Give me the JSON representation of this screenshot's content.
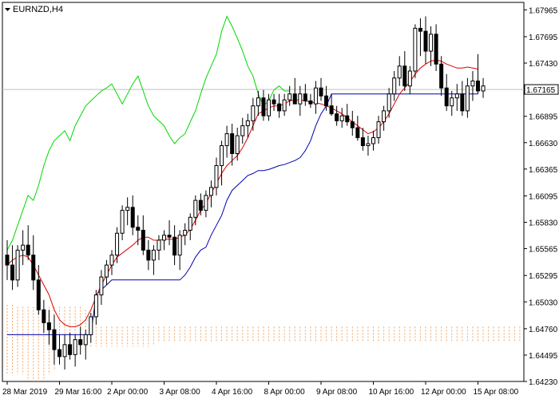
{
  "chart_data": {
    "type": "candlestick",
    "symbol_title": "EURNZD,H4",
    "y_ticks": [
      "1.67965",
      "1.67695",
      "1.67430",
      "1.67165",
      "1.66895",
      "1.66630",
      "1.66365",
      "1.66095",
      "1.65830",
      "1.65565",
      "1.65295",
      "1.65030",
      "1.64760",
      "1.64495",
      "1.64230"
    ],
    "ylim": [
      1.6423,
      1.6804
    ],
    "current_price": "1.67165",
    "x_labels": [
      "28 Mar 2019",
      "29 Mar 16:00",
      "2 Apr 00:00",
      "3 Apr 08:00",
      "4 Apr 16:00",
      "8 Apr 00:00",
      "9 Apr 08:00",
      "10 Apr 16:00",
      "12 Apr 00:00",
      "15 Apr 08:00"
    ],
    "x_label_index": [
      0,
      10,
      20,
      30,
      40,
      50,
      60,
      70,
      80,
      90
    ],
    "candles": [
      [
        1.655,
        1.6565,
        1.6525,
        1.654
      ],
      [
        1.654,
        1.656,
        1.6515,
        1.6525
      ],
      [
        1.6525,
        1.656,
        1.6518,
        1.6555
      ],
      [
        1.6555,
        1.6575,
        1.654,
        1.656
      ],
      [
        1.656,
        1.658,
        1.6545,
        1.655
      ],
      [
        1.655,
        1.657,
        1.6515,
        1.6525
      ],
      [
        1.6525,
        1.654,
        1.649,
        1.6495
      ],
      [
        1.6495,
        1.6505,
        1.6472,
        1.6482
      ],
      [
        1.6482,
        1.6495,
        1.646,
        1.6475
      ],
      [
        1.6475,
        1.649,
        1.644,
        1.6455
      ],
      [
        1.6455,
        1.647,
        1.644,
        1.6448
      ],
      [
        1.6448,
        1.647,
        1.6435,
        1.646
      ],
      [
        1.646,
        1.6472,
        1.6445,
        1.645
      ],
      [
        1.645,
        1.647,
        1.6438,
        1.6465
      ],
      [
        1.6465,
        1.6478,
        1.645,
        1.646
      ],
      [
        1.646,
        1.6475,
        1.6445,
        1.647
      ],
      [
        1.647,
        1.6492,
        1.6462,
        1.6488
      ],
      [
        1.6488,
        1.6515,
        1.648,
        1.651
      ],
      [
        1.651,
        1.6535,
        1.65,
        1.6528
      ],
      [
        1.6528,
        1.6545,
        1.652,
        1.654
      ],
      [
        1.654,
        1.6555,
        1.653,
        1.655
      ],
      [
        1.655,
        1.6578,
        1.6542,
        1.6572
      ],
      [
        1.6572,
        1.66,
        1.6565,
        1.6595
      ],
      [
        1.6595,
        1.6608,
        1.658,
        1.6598
      ],
      [
        1.6598,
        1.661,
        1.657,
        1.6578
      ],
      [
        1.6578,
        1.659,
        1.656,
        1.6575
      ],
      [
        1.6575,
        1.659,
        1.655,
        1.6555
      ],
      [
        1.6555,
        1.6565,
        1.6535,
        1.6545
      ],
      [
        1.6545,
        1.656,
        1.653,
        1.6555
      ],
      [
        1.6555,
        1.657,
        1.6545,
        1.6565
      ],
      [
        1.6565,
        1.6575,
        1.6555,
        1.657
      ],
      [
        1.657,
        1.6585,
        1.656,
        1.6568
      ],
      [
        1.6568,
        1.658,
        1.654,
        1.655
      ],
      [
        1.655,
        1.6575,
        1.6535,
        1.657
      ],
      [
        1.657,
        1.6582,
        1.656,
        1.6575
      ],
      [
        1.6575,
        1.6592,
        1.6565,
        1.6588
      ],
      [
        1.6588,
        1.661,
        1.658,
        1.6605
      ],
      [
        1.6605,
        1.6612,
        1.659,
        1.6595
      ],
      [
        1.6595,
        1.6615,
        1.6588,
        1.661
      ],
      [
        1.661,
        1.6625,
        1.6598,
        1.6618
      ],
      [
        1.6618,
        1.6648,
        1.661,
        1.664
      ],
      [
        1.664,
        1.6665,
        1.662,
        1.666
      ],
      [
        1.666,
        1.668,
        1.6648,
        1.6672
      ],
      [
        1.6672,
        1.6682,
        1.664,
        1.6652
      ],
      [
        1.6652,
        1.6678,
        1.6645,
        1.667
      ],
      [
        1.667,
        1.6688,
        1.6662,
        1.668
      ],
      [
        1.668,
        1.6692,
        1.6668,
        1.6685
      ],
      [
        1.6685,
        1.6708,
        1.6675,
        1.67
      ],
      [
        1.67,
        1.6715,
        1.669,
        1.6708
      ],
      [
        1.6708,
        1.6716,
        1.6685,
        1.669
      ],
      [
        1.669,
        1.6712,
        1.6685,
        1.6706
      ],
      [
        1.6706,
        1.6712,
        1.6695,
        1.6702
      ],
      [
        1.6702,
        1.6712,
        1.6688,
        1.6695
      ],
      [
        1.6695,
        1.6712,
        1.669,
        1.6706
      ],
      [
        1.6706,
        1.672,
        1.67,
        1.6712
      ],
      [
        1.6712,
        1.6728,
        1.6702,
        1.6702
      ],
      [
        1.6702,
        1.672,
        1.669,
        1.6712
      ],
      [
        1.6712,
        1.6722,
        1.67,
        1.6705
      ],
      [
        1.6705,
        1.6712,
        1.6698,
        1.6702
      ],
      [
        1.6702,
        1.6725,
        1.6692,
        1.6718
      ],
      [
        1.6718,
        1.6728,
        1.6705,
        1.671
      ],
      [
        1.671,
        1.672,
        1.6695,
        1.67
      ],
      [
        1.67,
        1.6712,
        1.669,
        1.6692
      ],
      [
        1.6692,
        1.67,
        1.668,
        1.6685
      ],
      [
        1.6685,
        1.6698,
        1.6678,
        1.669
      ],
      [
        1.669,
        1.6702,
        1.668,
        1.6684
      ],
      [
        1.6684,
        1.6695,
        1.667,
        1.6678
      ],
      [
        1.6678,
        1.669,
        1.6665,
        1.6668
      ],
      [
        1.6668,
        1.6678,
        1.6655,
        1.666
      ],
      [
        1.666,
        1.667,
        1.665,
        1.6662
      ],
      [
        1.6662,
        1.6675,
        1.6655,
        1.6668
      ],
      [
        1.6668,
        1.669,
        1.6662,
        1.6684
      ],
      [
        1.6684,
        1.67,
        1.6675,
        1.6695
      ],
      [
        1.6695,
        1.6718,
        1.6688,
        1.6712
      ],
      [
        1.6712,
        1.6735,
        1.6705,
        1.6728
      ],
      [
        1.6728,
        1.675,
        1.672,
        1.674
      ],
      [
        1.674,
        1.6755,
        1.6715,
        1.672
      ],
      [
        1.672,
        1.674,
        1.6712,
        1.6735
      ],
      [
        1.6735,
        1.6782,
        1.6728,
        1.6778
      ],
      [
        1.6778,
        1.6788,
        1.675,
        1.6775
      ],
      [
        1.6775,
        1.679,
        1.6742,
        1.6755
      ],
      [
        1.6755,
        1.678,
        1.674,
        1.6772
      ],
      [
        1.6772,
        1.6782,
        1.6735,
        1.6742
      ],
      [
        1.6742,
        1.675,
        1.671,
        1.6718
      ],
      [
        1.6718,
        1.6732,
        1.6695,
        1.67
      ],
      [
        1.67,
        1.6715,
        1.669,
        1.6708
      ],
      [
        1.6708,
        1.6722,
        1.6695,
        1.6712
      ],
      [
        1.6712,
        1.6725,
        1.669,
        1.6695
      ],
      [
        1.6695,
        1.6728,
        1.6688,
        1.672
      ],
      [
        1.672,
        1.6735,
        1.6705,
        1.6725
      ],
      [
        1.6725,
        1.6752,
        1.6712,
        1.6715
      ],
      [
        1.6715,
        1.6728,
        1.6708,
        1.672
      ]
    ],
    "tenkan_sen": [
      1.654,
      1.6545,
      1.6548,
      1.655,
      1.6548,
      1.654,
      1.653,
      1.652,
      1.651,
      1.6495,
      1.6485,
      1.648,
      1.6478,
      1.6478,
      1.648,
      1.6485,
      1.6495,
      1.6508,
      1.652,
      1.653,
      1.654,
      1.6548,
      1.6552,
      1.6556,
      1.656,
      1.6565,
      1.6568,
      1.6568,
      1.6565,
      1.6565,
      1.6566,
      1.6566,
      1.6566,
      1.6568,
      1.657,
      1.6576,
      1.6585,
      1.6595,
      1.6602,
      1.6612,
      1.6622,
      1.6632,
      1.664,
      1.6645,
      1.665,
      1.6658,
      1.6668,
      1.668,
      1.6692,
      1.6695,
      1.6698,
      1.67,
      1.67,
      1.6702,
      1.6705,
      1.6706,
      1.6706,
      1.6705,
      1.6704,
      1.6703,
      1.6702,
      1.67,
      1.6698,
      1.6695,
      1.6692,
      1.6688,
      1.6684,
      1.668,
      1.6676,
      1.6672,
      1.6674,
      1.6678,
      1.6684,
      1.6692,
      1.6702,
      1.6712,
      1.6718,
      1.6724,
      1.6732,
      1.6738,
      1.6742,
      1.6745,
      1.6746,
      1.6745,
      1.6742,
      1.674,
      1.6738,
      1.6738,
      1.6739,
      1.6738,
      1.6737
    ],
    "kijun_sen": [
      1.647,
      1.647,
      1.647,
      1.647,
      1.647,
      1.647,
      1.647,
      1.647,
      1.647,
      1.647,
      1.647,
      1.647,
      1.647,
      1.647,
      1.647,
      1.647,
      1.647,
      1.651,
      1.6515,
      1.652,
      1.6525,
      1.6525,
      1.6525,
      1.6525,
      1.6525,
      1.6525,
      1.6525,
      1.6525,
      1.6525,
      1.6525,
      1.6525,
      1.6525,
      1.6525,
      1.6525,
      1.653,
      1.6538,
      1.6548,
      1.6555,
      1.6558,
      1.657,
      1.658,
      1.659,
      1.6605,
      1.6615,
      1.662,
      1.6625,
      1.663,
      1.6632,
      1.6635,
      1.6635,
      1.6636,
      1.6638,
      1.664,
      1.6641,
      1.6643,
      1.6645,
      1.6648,
      1.6655,
      1.6665,
      1.668,
      1.6692,
      1.67,
      1.6712,
      1.6712,
      1.6712,
      1.6712,
      1.6712,
      1.6712,
      1.6712,
      1.6712,
      1.6712,
      1.6712,
      1.6712,
      1.6712,
      1.6712,
      1.6712,
      1.6712,
      1.6712,
      1.6712,
      1.6712,
      1.6712,
      1.6712,
      1.6712,
      1.6712,
      1.6712,
      1.6712,
      1.6712,
      1.6712,
      1.6712,
      1.6712,
      1.6712
    ],
    "chikou_span": [
      1.6555,
      1.6565,
      1.658,
      1.6595,
      1.661,
      1.6605,
      1.662,
      1.664,
      1.6655,
      1.6665,
      1.667,
      1.6675,
      1.6665,
      1.668,
      1.669,
      1.67,
      1.6705,
      1.671,
      1.6715,
      1.6718,
      1.6722,
      1.6712,
      1.6702,
      1.6712,
      1.6722,
      1.673,
      1.6715,
      1.67,
      1.669,
      1.6685,
      1.668,
      1.667,
      1.6662,
      1.6668,
      1.6672,
      1.6684,
      1.6695,
      1.6712,
      1.6728,
      1.674,
      1.6752,
      1.6775,
      1.679,
      1.678,
      1.6768,
      1.6755,
      1.674,
      1.673,
      1.6712,
      1.67,
      1.6705,
      1.6716,
      1.672,
      1.6715,
      1.6715
    ],
    "cloud_a": [
      1.65,
      1.65,
      1.6498,
      1.6498,
      1.6498,
      1.6498,
      1.6498,
      1.6498,
      1.6498,
      1.6498,
      1.6498,
      1.6498,
      1.6498,
      1.6498,
      1.6498,
      1.6495,
      1.6495,
      1.6478,
      1.6478,
      1.6478,
      1.6478,
      1.6478,
      1.6478,
      1.6478,
      1.6478,
      1.6478,
      1.6478,
      1.6478,
      1.6478,
      1.6478,
      1.6478,
      1.6478,
      1.6478,
      1.6478,
      1.6478,
      1.6478,
      1.6478,
      1.6478,
      1.6478,
      1.6478,
      1.6478,
      1.6478,
      1.6478,
      1.6478,
      1.6478,
      1.6478,
      1.6478,
      1.6478,
      1.6478,
      1.6478,
      1.6478,
      1.6478,
      1.6478,
      1.6478,
      1.6478,
      1.6478,
      1.6478,
      1.6478,
      1.6478,
      1.6478,
      1.6478,
      1.6478,
      1.6478,
      1.6478,
      1.6478,
      1.6478,
      1.6478,
      1.6478,
      1.6478,
      1.6478,
      1.6478,
      1.6478,
      1.6478,
      1.6478,
      1.6478,
      1.6478,
      1.6478,
      1.6478,
      1.6478,
      1.6478,
      1.6478,
      1.6478,
      1.6478,
      1.6478,
      1.6478,
      1.6478,
      1.6478,
      1.6478,
      1.6478,
      1.6478,
      1.6478,
      1.6478,
      1.6478,
      1.6478,
      1.6478,
      1.6478,
      1.6478,
      1.6478,
      1.6478,
      1.6478,
      1.6478,
      1.6478,
      1.6478,
      1.6478,
      1.6478,
      1.6478,
      1.6478,
      1.6478,
      1.6478,
      1.6478,
      1.6478,
      1.6478,
      1.6478,
      1.6478,
      1.6478,
      1.6478
    ],
    "cloud_b": [
      1.643,
      1.643,
      1.643,
      1.643,
      1.6425,
      1.6423,
      1.6423,
      1.6425,
      1.643,
      1.6435,
      1.644,
      1.645,
      1.6458,
      1.6458,
      1.6458,
      1.6458,
      1.6458,
      1.6458,
      1.6458,
      1.6458,
      1.6458,
      1.6458,
      1.6458,
      1.6458,
      1.6458,
      1.6458,
      1.6458,
      1.6458,
      1.646,
      1.6462,
      1.6462,
      1.6462,
      1.6462,
      1.6462,
      1.6462,
      1.6462,
      1.6462,
      1.6462,
      1.6462,
      1.6462,
      1.6462,
      1.6462,
      1.6462,
      1.6462,
      1.6462,
      1.6462,
      1.6462,
      1.6462,
      1.6462,
      1.6462,
      1.6462,
      1.6462,
      1.6462,
      1.6462,
      1.6462,
      1.6462,
      1.6462,
      1.6462,
      1.6462,
      1.6462,
      1.6462,
      1.6462,
      1.6462,
      1.6462,
      1.6462,
      1.6462,
      1.6462,
      1.6462,
      1.6462,
      1.6462,
      1.6462,
      1.6462,
      1.6462,
      1.6462,
      1.6462,
      1.6462,
      1.6462,
      1.6462,
      1.6462,
      1.6462,
      1.6462,
      1.6462,
      1.6462,
      1.6462,
      1.6462,
      1.6462,
      1.6462,
      1.6462,
      1.6462,
      1.6462,
      1.6462,
      1.6462,
      1.6462,
      1.6462,
      1.6462,
      1.6462,
      1.6462,
      1.6462,
      1.6462,
      1.6462,
      1.6462,
      1.6462,
      1.6462,
      1.6462,
      1.6462,
      1.6462,
      1.6462,
      1.6462,
      1.6462,
      1.6462,
      1.6462,
      1.6462,
      1.6462,
      1.6462,
      1.6462,
      1.6462
    ],
    "colors": {
      "bull": "#ffffff",
      "bear": "#000000",
      "tenkan": "#e00000",
      "kijun": "#0000b0",
      "chikou": "#00d800",
      "cloud_up": "#f4a460",
      "cloud_down": "#c8a8a8",
      "grid_line": "#c0c0c0",
      "price_tag_bg": "#ffffff",
      "text": "#000000"
    }
  }
}
